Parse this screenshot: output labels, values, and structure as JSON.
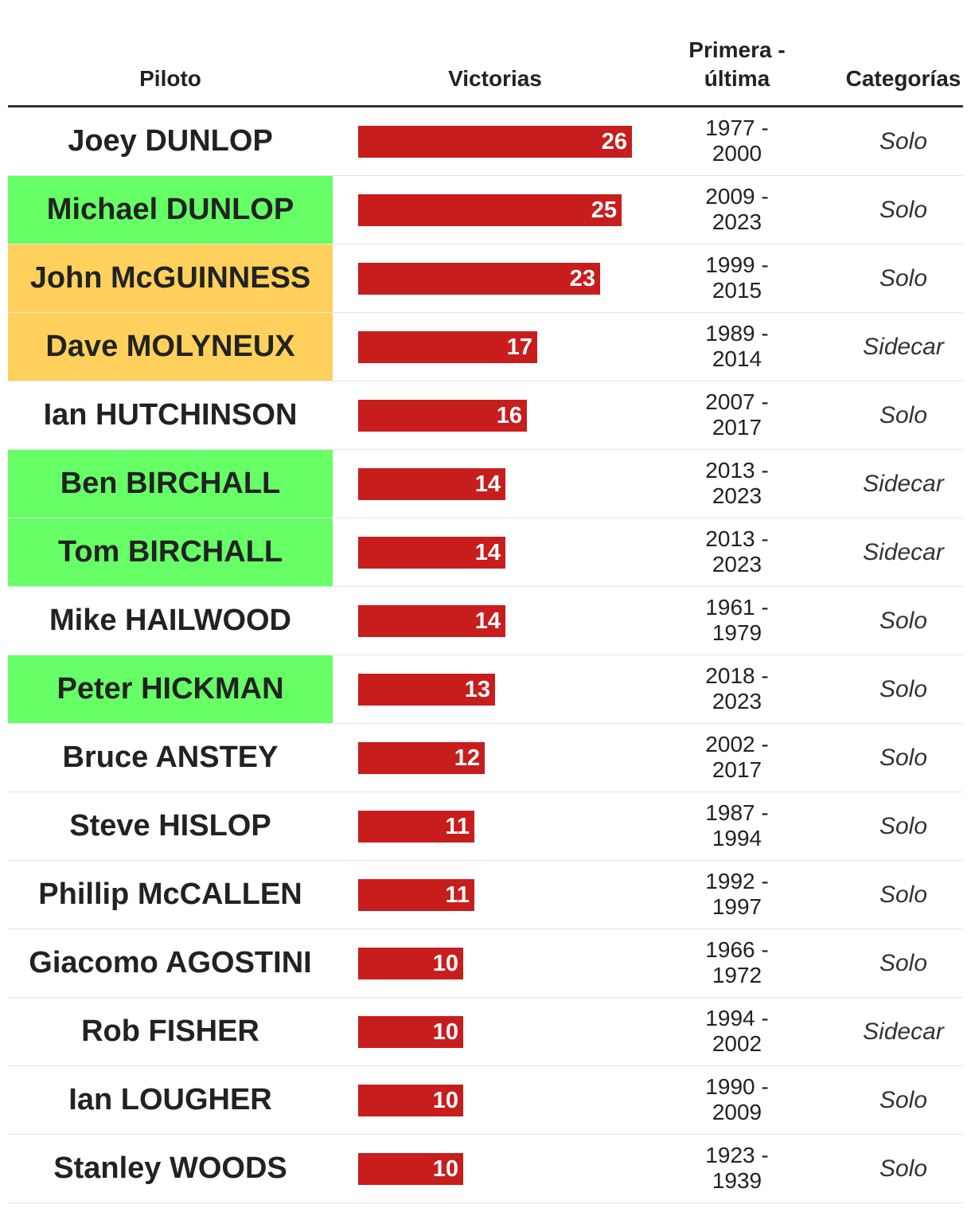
{
  "columns": {
    "pilot": "Piloto",
    "wins": "Victorias",
    "years_line1": "Primera -",
    "years_line2": "última",
    "category": "Categorías"
  },
  "colors": {
    "bar": "#c81d1d",
    "green_highlight": "#66ff66",
    "orange_highlight": "#ffd15c"
  },
  "chart_data": {
    "type": "table",
    "max_value": 26,
    "rows": [
      {
        "pilot": "Joey DUNLOP",
        "wins": 26,
        "years_first": "1977 -",
        "years_last": "2000",
        "category": "Solo",
        "highlight": "none"
      },
      {
        "pilot": "Michael DUNLOP",
        "wins": 25,
        "years_first": "2009 -",
        "years_last": "2023",
        "category": "Solo",
        "highlight": "green"
      },
      {
        "pilot": "John McGUINNESS",
        "wins": 23,
        "years_first": "1999 -",
        "years_last": "2015",
        "category": "Solo",
        "highlight": "orange"
      },
      {
        "pilot": "Dave MOLYNEUX",
        "wins": 17,
        "years_first": "1989 -",
        "years_last": "2014",
        "category": "Sidecar",
        "highlight": "orange"
      },
      {
        "pilot": "Ian HUTCHINSON",
        "wins": 16,
        "years_first": "2007 -",
        "years_last": "2017",
        "category": "Solo",
        "highlight": "none"
      },
      {
        "pilot": "Ben BIRCHALL",
        "wins": 14,
        "years_first": "2013 -",
        "years_last": "2023",
        "category": "Sidecar",
        "highlight": "green"
      },
      {
        "pilot": "Tom BIRCHALL",
        "wins": 14,
        "years_first": "2013 -",
        "years_last": "2023",
        "category": "Sidecar",
        "highlight": "green"
      },
      {
        "pilot": "Mike HAILWOOD",
        "wins": 14,
        "years_first": "1961 -",
        "years_last": "1979",
        "category": "Solo",
        "highlight": "none"
      },
      {
        "pilot": "Peter HICKMAN",
        "wins": 13,
        "years_first": "2018 -",
        "years_last": "2023",
        "category": "Solo",
        "highlight": "green"
      },
      {
        "pilot": "Bruce ANSTEY",
        "wins": 12,
        "years_first": "2002 -",
        "years_last": "2017",
        "category": "Solo",
        "highlight": "none"
      },
      {
        "pilot": "Steve HISLOP",
        "wins": 11,
        "years_first": "1987 -",
        "years_last": "1994",
        "category": "Solo",
        "highlight": "none"
      },
      {
        "pilot": "Phillip McCALLEN",
        "wins": 11,
        "years_first": "1992 -",
        "years_last": "1997",
        "category": "Solo",
        "highlight": "none"
      },
      {
        "pilot": "Giacomo AGOSTINI",
        "wins": 10,
        "years_first": "1966 -",
        "years_last": "1972",
        "category": "Solo",
        "highlight": "none"
      },
      {
        "pilot": "Rob FISHER",
        "wins": 10,
        "years_first": "1994 -",
        "years_last": "2002",
        "category": "Sidecar",
        "highlight": "none"
      },
      {
        "pilot": "Ian LOUGHER",
        "wins": 10,
        "years_first": "1990 -",
        "years_last": "2009",
        "category": "Solo",
        "highlight": "none"
      },
      {
        "pilot": "Stanley WOODS",
        "wins": 10,
        "years_first": "1923 -",
        "years_last": "1939",
        "category": "Solo",
        "highlight": "none"
      }
    ]
  }
}
